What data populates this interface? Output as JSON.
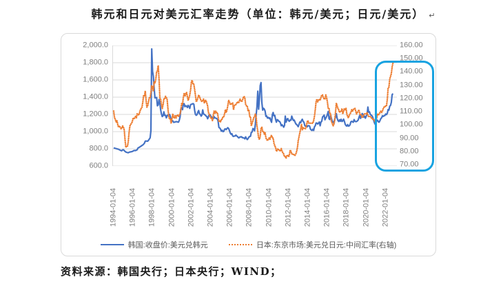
{
  "title": "韩元和日元对美元汇率走势（单位：韩元/美元；日元/美元）",
  "title_mark": "↵",
  "source": "资料来源：韩国央行；日本央行；WIND；",
  "colors": {
    "krw_line": "#4472C4",
    "jpy_line": "#ED7D31",
    "highlight_box": "#18A3E1",
    "gridline": "#D9D9D9",
    "axis_text": "#7F7F7F",
    "legend_text": "#595959"
  },
  "chart_data": {
    "type": "line",
    "title": "韩元和日元对美元汇率走势（单位：韩元/美元；日元/美元）",
    "grid": true,
    "legend_position": "bottom",
    "x_start": "1994-01",
    "x_end": "2022-10",
    "x_interval": "monthly",
    "x_tick_labels": [
      "1994-01-04",
      "1996-01-04",
      "1998-01-04",
      "2000-01-04",
      "2002-01-04",
      "2004-01-04",
      "2006-01-04",
      "2008-01-04",
      "2010-01-04",
      "2012-01-04",
      "2014-01-04",
      "2016-01-04",
      "2018-01-04",
      "2020-01-04",
      "2022-01-04"
    ],
    "left_axis": {
      "unit": "韩元/美元",
      "min": 600,
      "max": 2000,
      "tick_labels": [
        "2,000.0",
        "1,800.0",
        "1,600.0",
        "1,400.0",
        "1,200.0",
        "1,000.0",
        "800.0",
        "600.0"
      ]
    },
    "right_axis": {
      "unit": "日元/美元",
      "min": 70,
      "max": 160,
      "tick_labels": [
        "160.00",
        "150.00",
        "140.00",
        "130.00",
        "120.00",
        "110.00",
        "100.00",
        "90.00",
        "80.00",
        "70.00"
      ]
    },
    "highlight_box": {
      "color": "#18A3E1",
      "x_from": "2020-11",
      "x_to": "2022-10",
      "right_axis_from": 68,
      "right_axis_to": 149
    },
    "series": [
      {
        "name": "韩国:收盘价:美元兑韩元",
        "axis": "left",
        "color": "#4472C4",
        "style": "solid",
        "values": [
          812,
          809,
          806,
          803,
          800,
          798,
          795,
          790,
          785,
          780,
          778,
          788,
          790,
          780,
          771,
          763,
          760,
          757,
          755,
          760,
          764,
          765,
          767,
          770,
          775,
          780,
          782,
          780,
          785,
          790,
          810,
          815,
          820,
          828,
          832,
          840,
          846,
          855,
          866,
          890,
          891,
          890,
          889,
          900,
          914,
          929,
          1010,
          1960,
          1700,
          1640,
          1505,
          1392,
          1394,
          1397,
          1300,
          1310,
          1373,
          1330,
          1255,
          1205,
          1175,
          1185,
          1230,
          1189,
          1190,
          1160,
          1185,
          1195,
          1200,
          1200,
          1175,
          1140,
          1128,
          1125,
          1108,
          1110,
          1113,
          1115,
          1115,
          1112,
          1110,
          1133,
          1170,
          1265,
          1270,
          1255,
          1325,
          1325,
          1290,
          1300,
          1298,
          1280,
          1305,
          1290,
          1270,
          1314,
          1318,
          1320,
          1326,
          1318,
          1246,
          1200,
          1190,
          1198,
          1227,
          1245,
          1208,
          1200,
          1180,
          1192,
          1252,
          1205,
          1200,
          1194,
          1182,
          1176,
          1150,
          1168,
          1200,
          1197,
          1178,
          1168,
          1155,
          1148,
          1175,
          1160,
          1158,
          1152,
          1148,
          1122,
          1048,
          1043,
          1028,
          1006,
          1015,
          1000,
          1004,
          1028,
          1032,
          1024,
          1037,
          1046,
          1036,
          1012,
          984,
          970,
          976,
          950,
          944,
          950,
          949,
          960,
          948,
          944,
          930,
          928,
          940,
          938,
          941,
          929,
          929,
          926,
          916,
          939,
          919,
          908,
          919,
          936,
          944,
          946,
          991,
          996,
          1036,
          1029,
          1010,
          1089,
          1200,
          1290,
          1469,
          1260,
          1380,
          1534,
          1570,
          1341,
          1250,
          1272,
          1262,
          1239,
          1178,
          1182,
          1158,
          1166,
          1152,
          1160,
          1131,
          1108,
          1200,
          1222,
          1183,
          1188,
          1140,
          1110,
          1140,
          1134,
          1120,
          1118,
          1101,
          1068,
          1080,
          1068,
          1052,
          1072,
          1180,
          1110,
          1142,
          1152,
          1128,
          1120,
          1135,
          1133,
          1180,
          1153,
          1130,
          1134,
          1112,
          1090,
          1084,
          1070,
          1058,
          1086,
          1112,
          1104,
          1130,
          1144,
          1118,
          1110,
          1074,
          1060,
          1062,
          1055,
          1068,
          1070,
          1064,
          1030,
          1020,
          1014,
          1028,
          1014,
          1055,
          1068,
          1100,
          1099,
          1088,
          1098,
          1112,
          1068,
          1110,
          1120,
          1170,
          1180,
          1192,
          1138,
          1158,
          1175,
          1200,
          1234,
          1150,
          1140,
          1190,
          1153,
          1120,
          1114,
          1100,
          1143,
          1170,
          1208,
          1158,
          1130,
          1118,
          1138,
          1120,
          1143,
          1118,
          1124,
          1145,
          1120,
          1085,
          1070,
          1064,
          1082,
          1064,
          1068,
          1080,
          1114,
          1120,
          1113,
          1109,
          1140,
          1120,
          1116,
          1118,
          1124,
          1135,
          1164,
          1190,
          1154,
          1184,
          1210,
          1200,
          1168,
          1180,
          1156,
          1180,
          1200,
          1285,
          1225,
          1230,
          1200,
          1193,
          1185,
          1170,
          1135,
          1105,
          1086,
          1115,
          1123,
          1131,
          1114,
          1110,
          1130,
          1152,
          1160,
          1184,
          1176,
          1186,
          1186,
          1205,
          1198,
          1214,
          1256,
          1250,
          1296,
          1305,
          1340,
          1430,
          1442
        ]
      },
      {
        "name": "日本:东京市场:美元兑日元:中间汇率(右轴)",
        "axis": "right",
        "color": "#ED7D31",
        "style": "dotted",
        "values": [
          111,
          106,
          105,
          103,
          104,
          101,
          99,
          100,
          99,
          98,
          98,
          100,
          99,
          97,
          90,
          84,
          85,
          85,
          88,
          95,
          100,
          101,
          102,
          103,
          106,
          105,
          106,
          107,
          106,
          109,
          109,
          108,
          110,
          112,
          113,
          114,
          118,
          123,
          122,
          126,
          119,
          114,
          115,
          118,
          121,
          121,
          125,
          130,
          129,
          126,
          133,
          132,
          135,
          140,
          141,
          145,
          135,
          121,
          120,
          116,
          113,
          116,
          120,
          120,
          122,
          121,
          120,
          113,
          107,
          105,
          105,
          102,
          105,
          109,
          106,
          106,
          108,
          106,
          108,
          108,
          107,
          108,
          109,
          112,
          117,
          116,
          121,
          124,
          122,
          124,
          125,
          122,
          119,
          121,
          123,
          127,
          133,
          134,
          131,
          131,
          127,
          123,
          118,
          119,
          121,
          123,
          122,
          120,
          119,
          118,
          119,
          120,
          117,
          119,
          119,
          117,
          115,
          110,
          109,
          107,
          106,
          106,
          104,
          108,
          111,
          109,
          111,
          110,
          110,
          107,
          103,
          104,
          103,
          105,
          105,
          107,
          107,
          109,
          112,
          110,
          112,
          115,
          119,
          118,
          116,
          116,
          117,
          117,
          112,
          115,
          116,
          116,
          117,
          118,
          117,
          118,
          120,
          119,
          118,
          119,
          121,
          122,
          121,
          116,
          115,
          115,
          111,
          112,
          107,
          107,
          100,
          102,
          104,
          106,
          107,
          109,
          106,
          100,
          96,
          91,
          90,
          92,
          98,
          99,
          96,
          96,
          94,
          95,
          91,
          90,
          89,
          90,
          91,
          90,
          92,
          93,
          91,
          91,
          87,
          85,
          84,
          81,
          82,
          83,
          82,
          82,
          81,
          83,
          81,
          80,
          79,
          77,
          77,
          76,
          78,
          78,
          77,
          78,
          82,
          81,
          79,
          79,
          79,
          78,
          78,
          79,
          81,
          84,
          89,
          92,
          95,
          98,
          101,
          97,
          99,
          98,
          98,
          98,
          100,
          103,
          104,
          102,
          102,
          102,
          102,
          102,
          102,
          104,
          107,
          112,
          118,
          120,
          118,
          119,
          120,
          119,
          121,
          123,
          123,
          121,
          120,
          120,
          123,
          121,
          118,
          113,
          113,
          109,
          109,
          103,
          102,
          100,
          101,
          104,
          110,
          117,
          115,
          113,
          112,
          110,
          111,
          111,
          113,
          109,
          111,
          113,
          112,
          113,
          109,
          107,
          106,
          108,
          109,
          110,
          112,
          111,
          112,
          113,
          113,
          111,
          109,
          110,
          111,
          112,
          109,
          108,
          108,
          106,
          107,
          108,
          109,
          109,
          109,
          110,
          108,
          107,
          107,
          107,
          106,
          106,
          105,
          105,
          104,
          103,
          104,
          106,
          109,
          108,
          109,
          110,
          111,
          110,
          111,
          113,
          114,
          114,
          115,
          115,
          120,
          128,
          129,
          135,
          137,
          139,
          144,
          147
        ]
      }
    ]
  }
}
